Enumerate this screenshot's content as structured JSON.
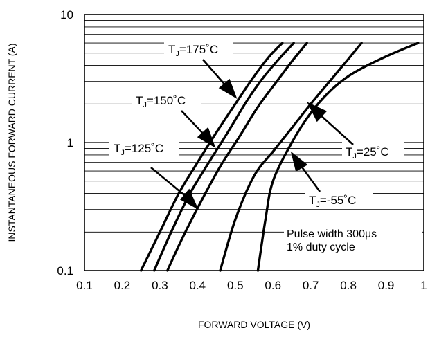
{
  "chart_data": {
    "type": "line",
    "title": "",
    "xlabel": "FORWARD VOLTAGE (V)",
    "ylabel": "INSTANTANEOUS FORWARD CURRENT (A)",
    "xlim": [
      0.1,
      1.0
    ],
    "ylim": [
      0.1,
      10
    ],
    "yscale": "log",
    "grid": true,
    "x_ticks": [
      "0.1",
      "0.2",
      "0.3",
      "0.4",
      "0.5",
      "0.6",
      "0.7",
      "0.8",
      "0.9",
      "1"
    ],
    "y_ticks": [
      "0.1",
      "1",
      "10"
    ],
    "series": [
      {
        "label_prefix": "T",
        "label_sub": "J",
        "label_suffix": "=175˚C",
        "points": [
          [
            0.25,
            0.1
          ],
          [
            0.3,
            0.2
          ],
          [
            0.35,
            0.4
          ],
          [
            0.4,
            0.7
          ],
          [
            0.45,
            1.2
          ],
          [
            0.5,
            2.0
          ],
          [
            0.55,
            3.3
          ],
          [
            0.59,
            4.7
          ],
          [
            0.625,
            6.0
          ]
        ]
      },
      {
        "label_prefix": "T",
        "label_sub": "J",
        "label_suffix": "=150˚C",
        "points": [
          [
            0.285,
            0.1
          ],
          [
            0.33,
            0.2
          ],
          [
            0.38,
            0.4
          ],
          [
            0.43,
            0.7
          ],
          [
            0.48,
            1.2
          ],
          [
            0.53,
            2.1
          ],
          [
            0.57,
            3.1
          ],
          [
            0.61,
            4.3
          ],
          [
            0.655,
            6.0
          ]
        ]
      },
      {
        "label_prefix": "T",
        "label_sub": "J",
        "label_suffix": "=125˚C",
        "points": [
          [
            0.32,
            0.1
          ],
          [
            0.36,
            0.18
          ],
          [
            0.41,
            0.35
          ],
          [
            0.46,
            0.65
          ],
          [
            0.51,
            1.1
          ],
          [
            0.56,
            1.9
          ],
          [
            0.61,
            3.0
          ],
          [
            0.65,
            4.3
          ],
          [
            0.69,
            6.0
          ]
        ]
      },
      {
        "label_prefix": "T",
        "label_sub": "J",
        "label_suffix": "=25˚C",
        "points": [
          [
            0.46,
            0.1
          ],
          [
            0.5,
            0.25
          ],
          [
            0.55,
            0.55
          ],
          [
            0.6,
            0.85
          ],
          [
            0.65,
            1.3
          ],
          [
            0.7,
            2.0
          ],
          [
            0.75,
            3.0
          ],
          [
            0.8,
            4.5
          ],
          [
            0.835,
            6.0
          ]
        ]
      },
      {
        "label_prefix": "T",
        "label_sub": "J",
        "label_suffix": "=-55˚C",
        "points": [
          [
            0.56,
            0.1
          ],
          [
            0.58,
            0.25
          ],
          [
            0.6,
            0.5
          ],
          [
            0.65,
            1.0
          ],
          [
            0.7,
            1.7
          ],
          [
            0.75,
            2.5
          ],
          [
            0.8,
            3.3
          ],
          [
            0.85,
            4.0
          ],
          [
            0.92,
            5.0
          ],
          [
            0.985,
            6.0
          ]
        ]
      }
    ],
    "annotations": {
      "note_line1": "Pulse width 300μs",
      "note_line2": "1% duty cycle"
    }
  }
}
